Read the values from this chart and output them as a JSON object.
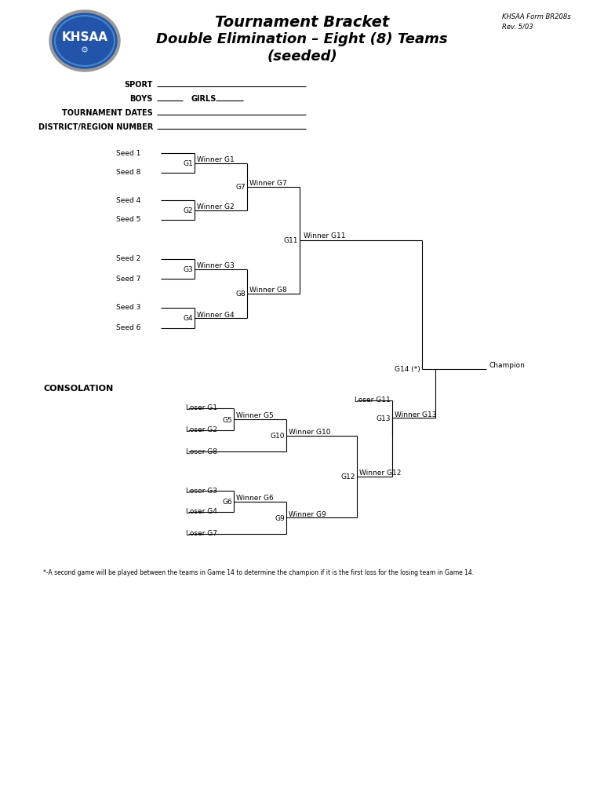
{
  "title_line1": "Tournament Bracket",
  "title_line2": "Double Elimination – Eight (8) Teams",
  "title_line3": "(seeded)",
  "bg_color": "#ffffff",
  "line_color": "#000000",
  "footnote": "*-A second game will be played between the teams in Game 14 to determine the champion if it is the first loss for the losing team in Game 14."
}
